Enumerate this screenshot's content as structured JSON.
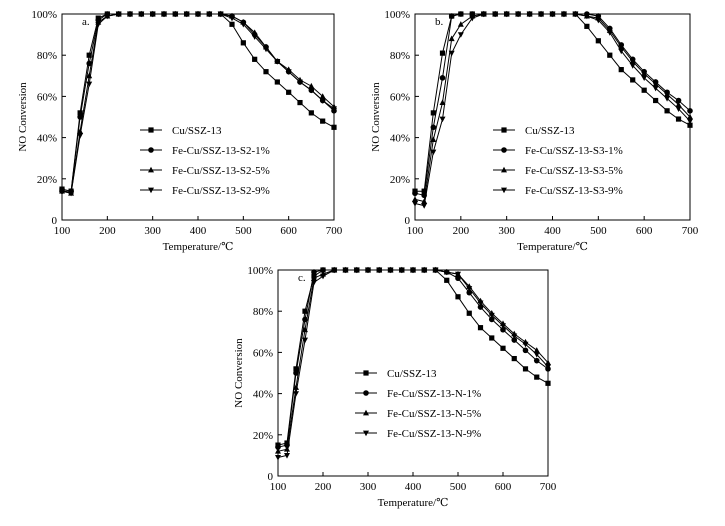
{
  "figure": {
    "panels": [
      {
        "type": "line",
        "panel_label": "a.",
        "xlabel": "Temperature/℃",
        "ylabel": "NO Conversion",
        "xlim": [
          100,
          700
        ],
        "ylim": [
          0,
          100
        ],
        "xticks": [
          100,
          200,
          300,
          400,
          500,
          600,
          700
        ],
        "yticks": [
          0,
          20,
          40,
          60,
          80,
          100
        ],
        "ytick_labels": [
          "0",
          "20%",
          "40%",
          "60%",
          "80%",
          "100%"
        ],
        "x": [
          100,
          120,
          140,
          160,
          180,
          200,
          225,
          250,
          275,
          300,
          325,
          350,
          375,
          400,
          425,
          450,
          475,
          500,
          525,
          550,
          575,
          600,
          625,
          650,
          675,
          700
        ],
        "series": [
          {
            "name": "Cu/SSZ-13",
            "marker": "square",
            "values": [
              15,
              14,
              52,
              80,
              98,
              100,
              100,
              100,
              100,
              100,
              100,
              100,
              100,
              100,
              100,
              100,
              95,
              86,
              78,
              72,
              67,
              62,
              57,
              52,
              48,
              45
            ]
          },
          {
            "name": "Fe-Cu/SSZ-13-S2-1%",
            "marker": "circle",
            "values": [
              14,
              14,
              50,
              76,
              97,
              100,
              100,
              100,
              100,
              100,
              100,
              100,
              100,
              100,
              100,
              100,
              99,
              96,
              90,
              84,
              77,
              72,
              67,
              63,
              58,
              53
            ]
          },
          {
            "name": "Fe-Cu/SSZ-13-S2-5%",
            "marker": "triangle-up",
            "values": [
              14,
              13,
              43,
              70,
              96,
              99,
              100,
              100,
              100,
              100,
              100,
              100,
              100,
              100,
              100,
              100,
              99,
              96,
              91,
              84,
              77,
              73,
              68,
              65,
              60,
              55
            ]
          },
          {
            "name": "Fe-Cu/SSZ-13-S2-9%",
            "marker": "triangle-down",
            "values": [
              14,
              13,
              41,
              66,
              95,
              99,
              100,
              100,
              100,
              100,
              100,
              100,
              100,
              100,
              100,
              100,
              98,
              95,
              89,
              83,
              77,
              72,
              67,
              63,
              58,
              54
            ]
          }
        ]
      },
      {
        "type": "line",
        "panel_label": "b.",
        "xlabel": "Temperature/℃",
        "ylabel": "NO Conversion",
        "xlim": [
          100,
          700
        ],
        "ylim": [
          0,
          100
        ],
        "xticks": [
          100,
          200,
          300,
          400,
          500,
          600,
          700
        ],
        "yticks": [
          0,
          20,
          40,
          60,
          80,
          100
        ],
        "ytick_labels": [
          "0",
          "20%",
          "40%",
          "60%",
          "80%",
          "100%"
        ],
        "x": [
          100,
          120,
          140,
          160,
          180,
          200,
          225,
          250,
          275,
          300,
          325,
          350,
          375,
          400,
          425,
          450,
          475,
          500,
          525,
          550,
          575,
          600,
          625,
          650,
          675,
          700
        ],
        "series": [
          {
            "name": "Cu/SSZ-13",
            "marker": "square",
            "values": [
              14,
              14,
              52,
              81,
              99,
              100,
              100,
              100,
              100,
              100,
              100,
              100,
              100,
              100,
              100,
              100,
              94,
              87,
              80,
              73,
              68,
              63,
              58,
              53,
              49,
              46
            ]
          },
          {
            "name": "Fe-Cu/SSZ-13-S3-1%",
            "marker": "circle",
            "values": [
              13,
              12,
              45,
              69,
              99,
              100,
              100,
              100,
              100,
              100,
              100,
              100,
              100,
              100,
              100,
              100,
              100,
              99,
              93,
              85,
              78,
              72,
              67,
              62,
              58,
              53
            ]
          },
          {
            "name": "Fe-Cu/SSZ-13-S3-5%",
            "marker": "triangle-up",
            "values": [
              10,
              9,
              39,
              57,
              88,
              95,
              99,
              100,
              100,
              100,
              100,
              100,
              100,
              100,
              100,
              100,
              99,
              98,
              92,
              84,
              77,
              71,
              66,
              61,
              56,
              50
            ]
          },
          {
            "name": "Fe-Cu/SSZ-13-S3-9%",
            "marker": "triangle-down",
            "values": [
              8,
              7,
              33,
              49,
              81,
              90,
              98,
              100,
              100,
              100,
              100,
              100,
              100,
              100,
              100,
              100,
              99,
              97,
              91,
              82,
              75,
              69,
              64,
              59,
              54,
              48
            ]
          }
        ]
      },
      {
        "type": "line",
        "panel_label": "c.",
        "xlabel": "Temperature/℃",
        "ylabel": "NO Conversion",
        "xlim": [
          100,
          700
        ],
        "ylim": [
          0,
          100
        ],
        "xticks": [
          100,
          200,
          300,
          400,
          500,
          600,
          700
        ],
        "yticks": [
          0,
          20,
          40,
          60,
          80,
          100
        ],
        "ytick_labels": [
          "0",
          "20%",
          "40%",
          "60%",
          "80%",
          "100%"
        ],
        "x": [
          100,
          120,
          140,
          160,
          180,
          200,
          225,
          250,
          275,
          300,
          325,
          350,
          375,
          400,
          425,
          450,
          475,
          500,
          525,
          550,
          575,
          600,
          625,
          650,
          675,
          700
        ],
        "series": [
          {
            "name": "Cu/SSZ-13",
            "marker": "square",
            "values": [
              15,
              16,
              52,
              80,
              97,
              100,
              100,
              100,
              100,
              100,
              100,
              100,
              100,
              100,
              100,
              100,
              95,
              87,
              79,
              72,
              67,
              62,
              57,
              52,
              48,
              45
            ]
          },
          {
            "name": "Fe-Cu/SSZ-13-N-1%",
            "marker": "circle",
            "values": [
              14,
              15,
              50,
              76,
              99,
              100,
              100,
              100,
              100,
              100,
              100,
              100,
              100,
              100,
              100,
              100,
              99,
              96,
              89,
              82,
              76,
              71,
              66,
              61,
              56,
              52
            ]
          },
          {
            "name": "Fe-Cu/SSZ-13-N-5%",
            "marker": "triangle-up",
            "values": [
              12,
              13,
              43,
              71,
              96,
              98,
              100,
              100,
              100,
              100,
              100,
              100,
              100,
              100,
              100,
              100,
              99,
              98,
              92,
              85,
              79,
              74,
              69,
              65,
              61,
              55
            ]
          },
          {
            "name": "Fe-Cu/SSZ-13-N-9%",
            "marker": "triangle-down",
            "values": [
              9,
              10,
              40,
              66,
              94,
              97,
              100,
              100,
              100,
              100,
              100,
              100,
              100,
              100,
              100,
              100,
              99,
              98,
              91,
              84,
              78,
              73,
              68,
              64,
              59,
              53
            ]
          }
        ]
      }
    ]
  }
}
